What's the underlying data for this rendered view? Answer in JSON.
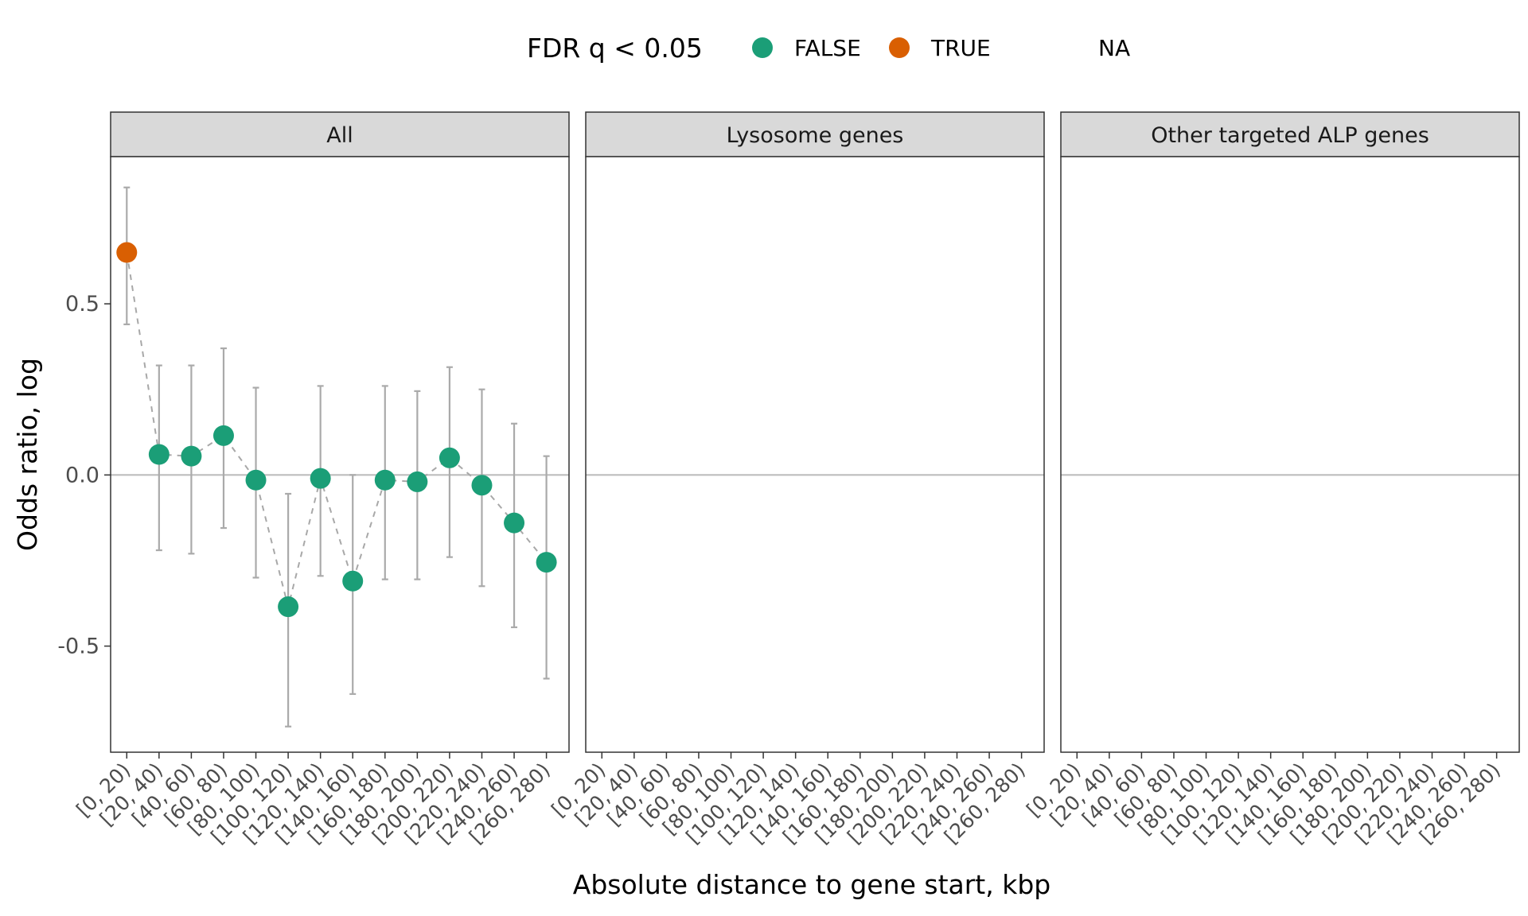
{
  "chart_data": {
    "type": "scatter",
    "xlabel": "Absolute distance to gene start, kbp",
    "ylabel": "Odds ratio, log",
    "ylim": [
      -0.81,
      0.93
    ],
    "yticks": [
      {
        "value": -0.5,
        "label": "-0.5"
      },
      {
        "value": 0.0,
        "label": "0.0"
      },
      {
        "value": 0.5,
        "label": "0.5"
      }
    ],
    "reference_line": 0,
    "grid": false,
    "legend": {
      "title": "FDR q < 0.05",
      "position": "top",
      "entries": [
        {
          "label": "FALSE",
          "color": "#1b9e77"
        },
        {
          "label": "TRUE",
          "color": "#d95f02"
        },
        {
          "label": "NA",
          "color": ""
        }
      ]
    },
    "categories": [
      "[0, 20)",
      "[20, 40)",
      "[40, 60)",
      "[60, 80)",
      "[80, 100)",
      "[100, 120)",
      "[120, 140)",
      "[140, 160)",
      "[160, 180)",
      "[180, 200)",
      "[200, 220)",
      "[220, 240)",
      "[240, 260)",
      "[260, 280)"
    ],
    "facets": [
      {
        "label": "All",
        "points": [
          {
            "y": 0.65,
            "lo": 0.44,
            "hi": 0.84,
            "sig": "TRUE"
          },
          {
            "y": 0.06,
            "lo": -0.22,
            "hi": 0.32,
            "sig": "FALSE"
          },
          {
            "y": 0.055,
            "lo": -0.23,
            "hi": 0.32,
            "sig": "FALSE"
          },
          {
            "y": 0.115,
            "lo": -0.155,
            "hi": 0.37,
            "sig": "FALSE"
          },
          {
            "y": -0.015,
            "lo": -0.3,
            "hi": 0.255,
            "sig": "FALSE"
          },
          {
            "y": -0.385,
            "lo": -0.735,
            "hi": -0.055,
            "sig": "FALSE"
          },
          {
            "y": -0.01,
            "lo": -0.295,
            "hi": 0.26,
            "sig": "FALSE"
          },
          {
            "y": -0.31,
            "lo": -0.64,
            "hi": 0.0,
            "sig": "FALSE"
          },
          {
            "y": -0.015,
            "lo": -0.305,
            "hi": 0.26,
            "sig": "FALSE"
          },
          {
            "y": -0.02,
            "lo": -0.305,
            "hi": 0.245,
            "sig": "FALSE"
          },
          {
            "y": 0.05,
            "lo": -0.24,
            "hi": 0.315,
            "sig": "FALSE"
          },
          {
            "y": -0.03,
            "lo": -0.325,
            "hi": 0.25,
            "sig": "FALSE"
          },
          {
            "y": -0.14,
            "lo": -0.445,
            "hi": 0.15,
            "sig": "FALSE"
          },
          {
            "y": -0.255,
            "lo": -0.595,
            "hi": 0.055,
            "sig": "FALSE"
          }
        ]
      },
      {
        "label": "Lysosome genes",
        "points": []
      },
      {
        "label": "Other targeted ALP genes",
        "points": []
      }
    ]
  }
}
